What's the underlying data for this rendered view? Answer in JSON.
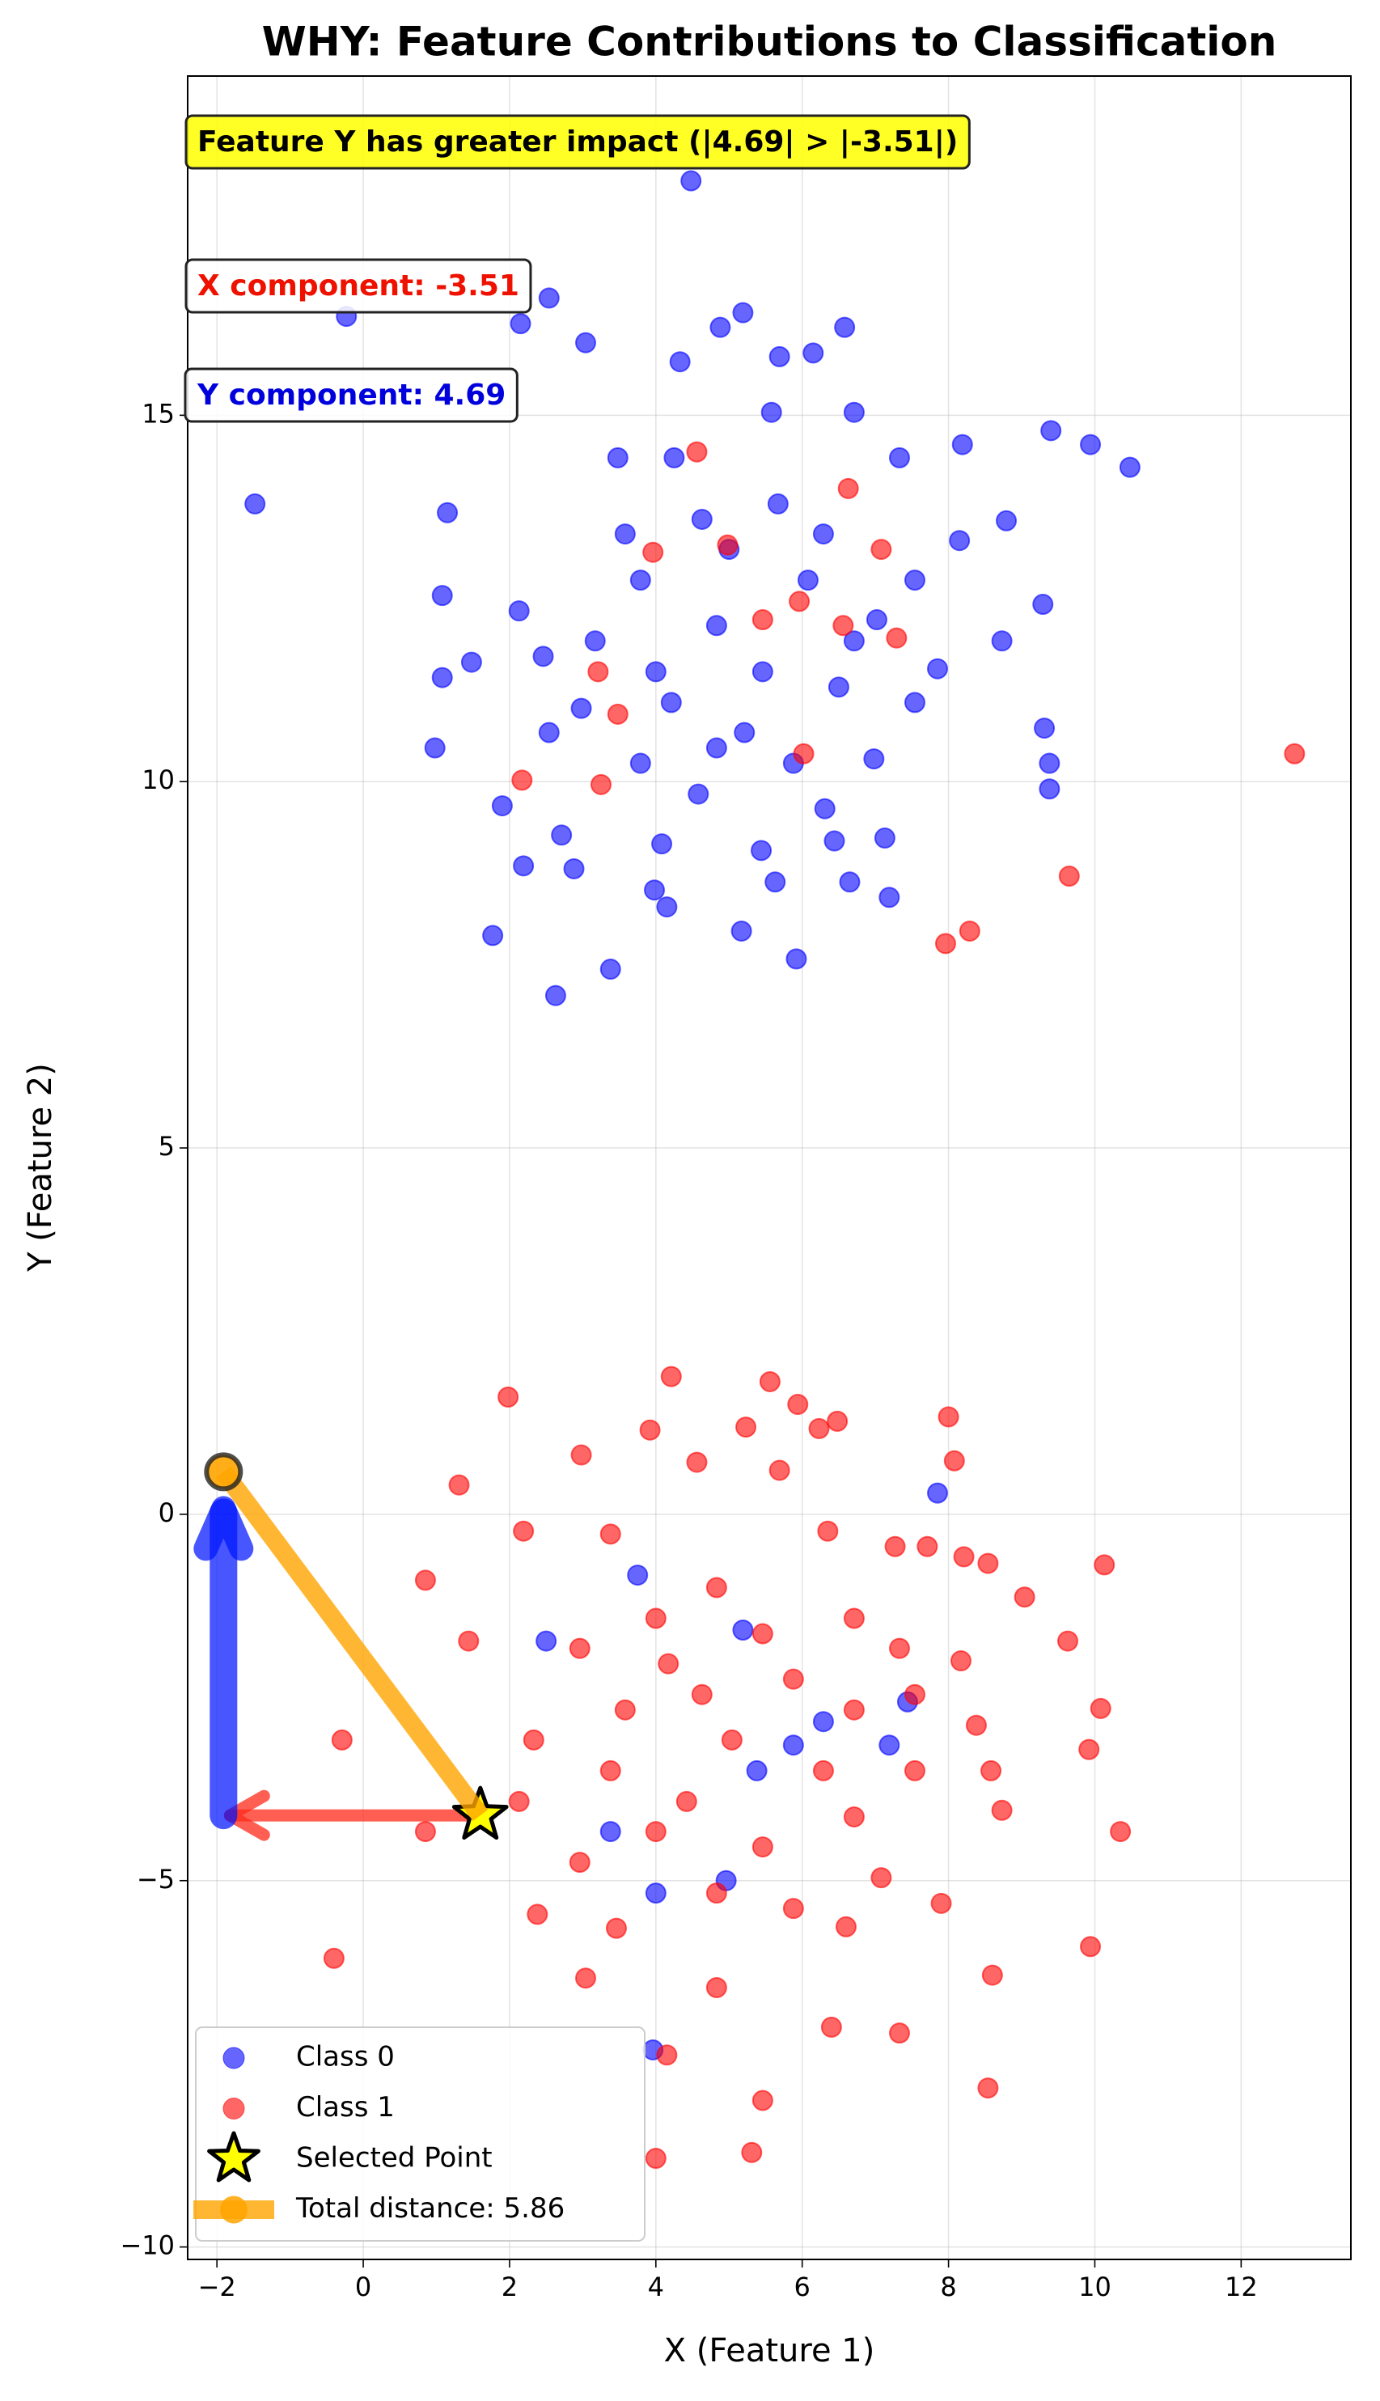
{
  "chart_data": {
    "type": "scatter",
    "title": "WHY: Feature Contributions to Classification",
    "xlabel": "X (Feature 1)",
    "ylabel": "Y (Feature 2)",
    "xlim": [
      -2.4,
      13.5
    ],
    "ylim": [
      -10.17,
      19.63
    ],
    "xticks": [
      {
        "value": -2,
        "label": "−2"
      },
      0,
      2,
      4,
      6,
      8,
      10,
      12
    ],
    "yticks": [
      {
        "value": -10,
        "label": "−10"
      },
      {
        "value": -5,
        "label": "−5"
      },
      0,
      5,
      10,
      15
    ],
    "grid": true,
    "legend": "lower left",
    "annotations": [
      {
        "text": "Feature Y has greater impact (|4.69| > |-3.51|)",
        "color": "#000000",
        "box": "#ffff00"
      },
      {
        "text": "X component: -3.51",
        "color": "#ee1100",
        "box": "#ffffff"
      },
      {
        "text": "Y component: 4.69",
        "color": "#0000dd",
        "box": "#ffffff"
      }
    ],
    "series": [
      {
        "name": "Class 0",
        "color": "#0000ff",
        "marker": "circle",
        "x": [
          4.48,
          -0.23,
          2.54,
          2.15,
          5.19,
          4.88,
          6.58,
          3.04,
          6.15,
          5.69,
          4.33,
          -1.48,
          10.48,
          9.94,
          9.4,
          8.19,
          7.33,
          1.15,
          1.08,
          1.08,
          1.48,
          0.98,
          1.9,
          2.19,
          1.77,
          2.63,
          3.38,
          5.92,
          5.17,
          7.19,
          6.65,
          5.63,
          3.98,
          4.15,
          2.88,
          2.71,
          4.08,
          5.44,
          6.44,
          7.13,
          9.38,
          9.38,
          9.31,
          9.29,
          8.79,
          8.15,
          8.73,
          7.85,
          7.54,
          6.98,
          6.31,
          4.58,
          3.79,
          2.98,
          2.46,
          2.13,
          3.48,
          4.25,
          5.58,
          6.71,
          4.83,
          5.46,
          6.08,
          4.21,
          5.0,
          6.5,
          3.79,
          5.88,
          7.54,
          3.17,
          4.63,
          5.67,
          6.71,
          4.0,
          5.21,
          6.29,
          3.58,
          4.83,
          7.02,
          2.54,
          2.5,
          5.19,
          7.85,
          3.75,
          3.38,
          4.96,
          3.96,
          7.19,
          7.44,
          6.29,
          5.88,
          5.38,
          4.0
        ],
        "y": [
          18.2,
          16.35,
          16.6,
          16.25,
          16.4,
          16.2,
          16.2,
          15.99,
          15.85,
          15.8,
          15.73,
          13.79,
          14.29,
          14.6,
          14.79,
          14.6,
          14.42,
          13.67,
          12.54,
          11.42,
          11.63,
          10.46,
          9.67,
          8.85,
          7.9,
          7.08,
          7.44,
          7.58,
          7.96,
          8.42,
          8.63,
          8.63,
          8.52,
          8.29,
          8.81,
          9.27,
          9.15,
          9.06,
          9.19,
          9.23,
          10.25,
          9.9,
          10.73,
          12.42,
          13.56,
          13.29,
          11.92,
          11.54,
          11.08,
          10.31,
          9.63,
          9.83,
          10.25,
          11.0,
          11.71,
          12.33,
          14.42,
          14.42,
          15.04,
          15.04,
          12.13,
          11.5,
          12.75,
          11.08,
          13.17,
          11.29,
          12.75,
          10.25,
          12.75,
          11.92,
          13.58,
          13.79,
          11.92,
          11.5,
          10.67,
          13.38,
          13.38,
          10.46,
          12.21,
          10.67,
          -1.73,
          -1.58,
          0.29,
          -0.83,
          -4.33,
          -5.0,
          -7.31,
          -3.15,
          -2.56,
          -2.83,
          -3.15,
          -3.5,
          -5.17
        ]
      },
      {
        "name": "Class 1",
        "color": "#ff0000",
        "marker": "circle",
        "x": [
          4.21,
          1.98,
          5.56,
          5.94,
          6.48,
          8.0,
          8.08,
          1.31,
          0.85,
          -0.29,
          -0.4,
          0.85,
          1.44,
          2.19,
          2.98,
          3.92,
          5.23,
          6.23,
          4.56,
          5.69,
          3.38,
          6.35,
          7.27,
          7.71,
          8.21,
          8.54,
          10.13,
          9.04,
          9.63,
          9.92,
          10.08,
          10.35,
          9.94,
          8.6,
          8.54,
          7.33,
          6.4,
          5.46,
          5.31,
          4.0,
          4.15,
          3.04,
          2.38,
          3.46,
          4.83,
          6.6,
          7.9,
          8.73,
          8.58,
          8.17,
          7.33,
          6.71,
          4.83,
          4.0,
          2.96,
          2.33,
          3.38,
          4.42,
          5.46,
          6.71,
          7.54,
          5.88,
          4.63,
          3.58,
          6.71,
          5.04,
          6.29,
          4.0,
          4.83,
          5.88,
          7.08,
          2.96,
          2.13,
          4.17,
          5.46,
          7.54,
          8.38,
          4.56,
          6.63,
          7.08,
          3.96,
          4.98,
          5.46,
          5.96,
          6.56,
          7.29,
          3.21,
          3.48,
          3.25,
          2.17,
          6.02,
          12.73,
          9.65,
          8.29,
          7.96
        ],
        "y": [
          1.88,
          1.6,
          1.81,
          1.5,
          1.27,
          1.33,
          0.73,
          0.4,
          -0.9,
          -3.08,
          -6.06,
          -4.33,
          -1.73,
          -0.23,
          0.81,
          1.15,
          1.19,
          1.17,
          0.71,
          0.6,
          -0.27,
          -0.23,
          -0.44,
          -0.44,
          -0.58,
          -0.67,
          -0.69,
          -1.13,
          -1.73,
          -3.21,
          -2.65,
          -4.33,
          -5.9,
          -6.29,
          -7.83,
          -7.08,
          -7.0,
          -8.0,
          -8.71,
          -8.79,
          -7.38,
          -6.33,
          -5.46,
          -5.65,
          -6.46,
          -5.63,
          -5.31,
          -4.04,
          -3.5,
          -2.0,
          -1.83,
          -1.42,
          -1.0,
          -1.42,
          -1.83,
          -3.08,
          -3.5,
          -3.92,
          -4.54,
          -4.13,
          -3.5,
          -2.25,
          -2.46,
          -2.67,
          -2.67,
          -3.08,
          -3.5,
          -4.33,
          -5.17,
          -5.38,
          -4.96,
          -4.75,
          -3.92,
          -2.04,
          -1.63,
          -2.46,
          -2.88,
          14.5,
          14.0,
          13.17,
          13.13,
          13.23,
          12.21,
          12.46,
          12.13,
          11.96,
          11.5,
          10.92,
          9.96,
          10.02,
          10.38,
          10.38,
          8.71,
          7.96,
          7.79
        ]
      },
      {
        "name": "Selected Point",
        "color": "#ffff00",
        "marker": "star",
        "x": [
          1.6
        ],
        "y": [
          -4.11
        ]
      },
      {
        "name": "Total distance: 5.86",
        "color": "#ffa500",
        "marker": "circle",
        "line": true,
        "x": [
          1.6,
          -1.91
        ],
        "y": [
          -4.11,
          0.58
        ]
      }
    ]
  }
}
